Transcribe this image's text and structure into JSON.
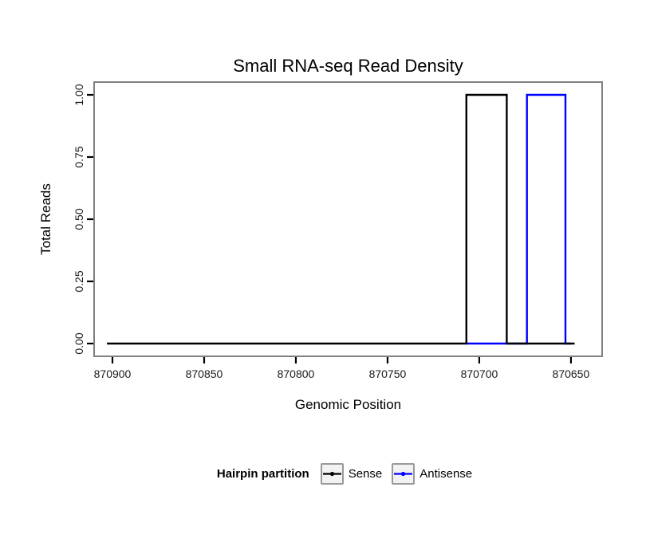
{
  "figure": {
    "title": "Small RNA-seq Read Density",
    "xlabel": "Genomic Position",
    "ylabel": "Total Reads"
  },
  "legend": {
    "title": "Hairpin partition",
    "entries": [
      {
        "label": "Sense",
        "color": "#000000"
      },
      {
        "label": "Antisense",
        "color": "#0000ff"
      }
    ]
  },
  "colors": {
    "sense": "#000000",
    "antisense": "#0000ff",
    "panel_border": "#808080",
    "axis_text": "#1a1a1a",
    "legend_key_bg": "#f2f2f2",
    "legend_key_border": "#999999"
  },
  "chart_data": {
    "type": "area",
    "title": "Small RNA-seq Read Density",
    "xlabel": "Genomic Position",
    "ylabel": "Total Reads",
    "x_axis_reversed": true,
    "xlim": [
      870910,
      870633
    ],
    "ylim": [
      -0.0513,
      1.0513
    ],
    "x_ticks": [
      870900,
      870850,
      870800,
      870750,
      870700,
      870650
    ],
    "y_ticks": [
      0.0,
      0.25,
      0.5,
      0.75,
      1.0
    ],
    "y_tick_labels": [
      "0.00",
      "0.25",
      "0.50",
      "0.75",
      "1.00"
    ],
    "grid": false,
    "legend_title": "Hairpin partition",
    "legend_position": "bottom",
    "series": [
      {
        "name": "Sense",
        "color": "#000000",
        "baseline_value": 0,
        "x_span": [
          870903,
          870648
        ],
        "peak": {
          "x_from": 870707,
          "x_to": 870685,
          "value": 1.0
        }
      },
      {
        "name": "Antisense",
        "color": "#0000ff",
        "baseline_value": 0,
        "x_span": [
          870707,
          870650
        ],
        "peak": {
          "x_from": 870674,
          "x_to": 870653,
          "value": 1.0
        }
      }
    ]
  }
}
